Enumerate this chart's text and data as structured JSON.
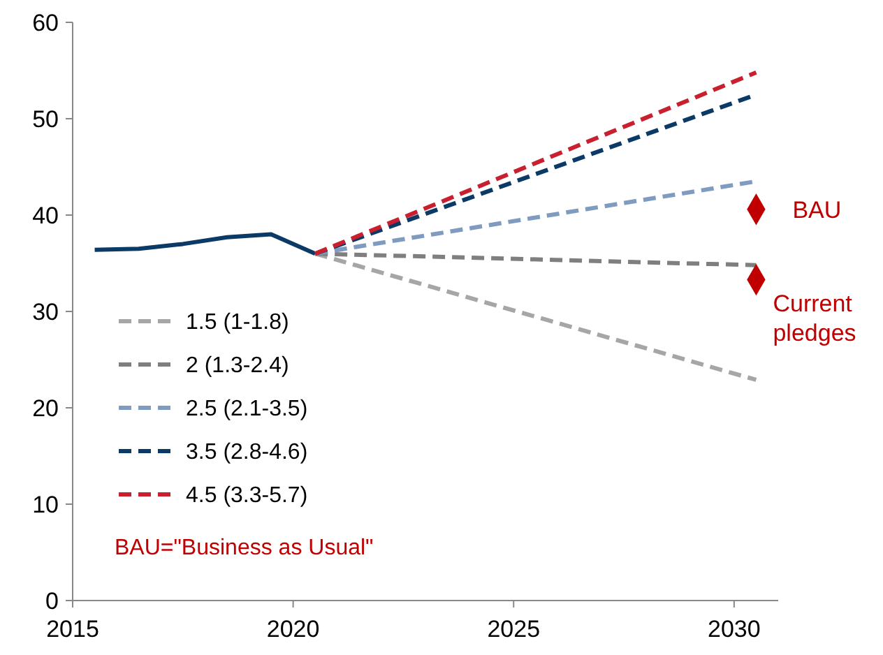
{
  "chart_data": {
    "type": "line",
    "xlim": [
      2015,
      2031
    ],
    "xticks": [
      2015,
      2020,
      2025,
      2030
    ],
    "ylim": [
      0,
      60
    ],
    "yticks": [
      0,
      10,
      20,
      30,
      40,
      50,
      60
    ],
    "grid": false,
    "legend": "left",
    "series": [
      {
        "color": "#0b3a66",
        "line_style": "solid",
        "x": [
          2015.5,
          2016.5,
          2017.5,
          2018.5,
          2019.5,
          2020.5
        ],
        "values": [
          36.4,
          36.5,
          37.0,
          37.7,
          38.0,
          36.0
        ]
      },
      {
        "name": "1.5 (1-1.8)",
        "color": "#a6a6a6",
        "line_style": "dashed",
        "x": [
          2020.5,
          2030.5
        ],
        "values": [
          36.0,
          22.9
        ]
      },
      {
        "name": "2 (1.3-2.4)",
        "color": "#7f7f7f",
        "line_style": "dashed",
        "x": [
          2020.5,
          2030.5
        ],
        "values": [
          36.0,
          34.8
        ]
      },
      {
        "name": "2.5 (2.1-3.5)",
        "color": "#7f9cc0",
        "line_style": "dashed",
        "x": [
          2020.5,
          2030.5
        ],
        "values": [
          36.0,
          43.5
        ]
      },
      {
        "name": "3.5 (2.8-4.6)",
        "color": "#0b3a66",
        "line_style": "dashed",
        "x": [
          2020.5,
          2030.5
        ],
        "values": [
          36.0,
          52.5
        ]
      },
      {
        "name": "4.5 (3.3-5.7)",
        "color": "#c8202f",
        "line_style": "dashed",
        "x": [
          2020.5,
          2030.5
        ],
        "values": [
          36.0,
          54.8
        ]
      },
      {
        "type": "scatter",
        "marker": "diamond",
        "color": "#c00000",
        "x": [
          2030.5,
          2030.5
        ],
        "values": [
          40.6,
          33.3
        ]
      }
    ],
    "annotations": [
      {
        "text": "BAU",
        "x": 2030.5,
        "y": 40.6
      },
      {
        "text": "Current pledges",
        "x": 2030.5,
        "y": 33.3
      },
      "BAU=\"Business as Usual\""
    ]
  }
}
